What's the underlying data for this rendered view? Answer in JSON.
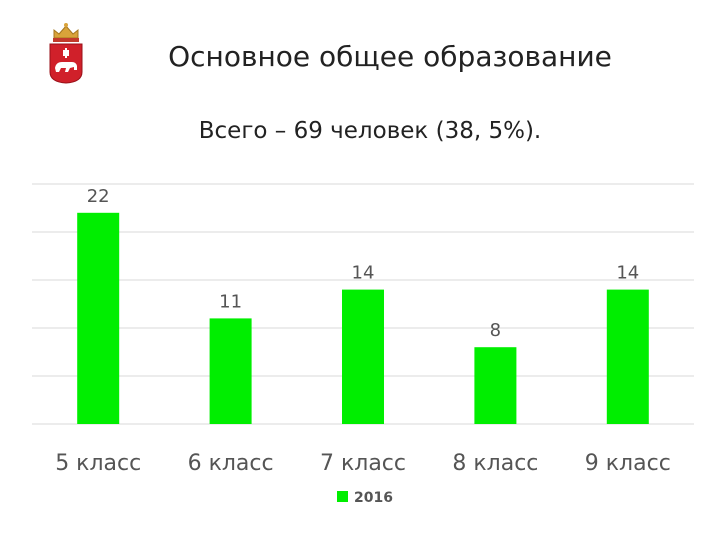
{
  "header": {
    "title": "Основное общее образование",
    "subtitle": "Всего – 69 человек (38, 5%)."
  },
  "emblem": {
    "icon": "perm-coat-of-arms-icon",
    "colors": {
      "crown": "#d9a33a",
      "shield": "#d0202a",
      "bear": "#ffffff"
    }
  },
  "chart_data": {
    "type": "bar",
    "categories": [
      "5 класс",
      "6 класс",
      "7 класс",
      "8 класс",
      "9 класс"
    ],
    "series": [
      {
        "name": "2016",
        "values": [
          22,
          11,
          14,
          8,
          14
        ],
        "color": "#00ee00"
      }
    ],
    "ylim": [
      0,
      25
    ],
    "grid": true,
    "legend": "bottom",
    "data_labels": true
  }
}
